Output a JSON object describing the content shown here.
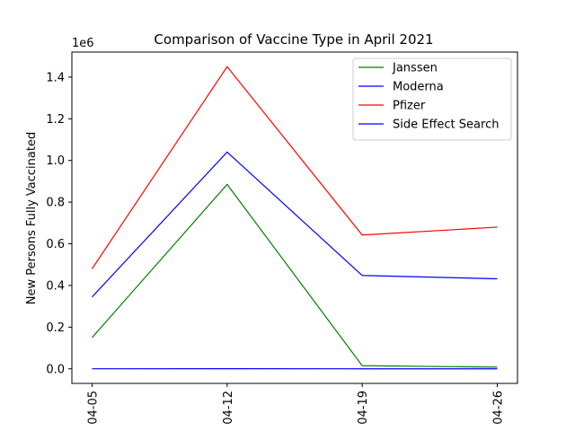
{
  "chart_data": {
    "type": "line",
    "title": "Comparison of Vaccine Type in April 2021",
    "xlabel": "",
    "ylabel": "New Persons Fully Vaccinated",
    "y_offset_label": "1e6",
    "categories": [
      "04-05",
      "04-12",
      "04-19",
      "04-26"
    ],
    "y_ticks": [
      "0.0",
      "0.2",
      "0.4",
      "0.6",
      "0.8",
      "1.0",
      "1.2",
      "1.4"
    ],
    "ylim": [
      -70000,
      1520000
    ],
    "grid": false,
    "legend_position": "top-right",
    "series": [
      {
        "name": "Janssen",
        "color": "#008000",
        "values": [
          150000,
          885000,
          15000,
          8000
        ]
      },
      {
        "name": "Moderna",
        "color": "#0000ff",
        "values": [
          345000,
          1040000,
          448000,
          432000
        ]
      },
      {
        "name": "Pfizer",
        "color": "#ff0000",
        "values": [
          480000,
          1450000,
          642000,
          680000
        ]
      },
      {
        "name": "Side Effect Search",
        "color": "#0000ff",
        "values": [
          200,
          400,
          150,
          120
        ]
      }
    ]
  }
}
